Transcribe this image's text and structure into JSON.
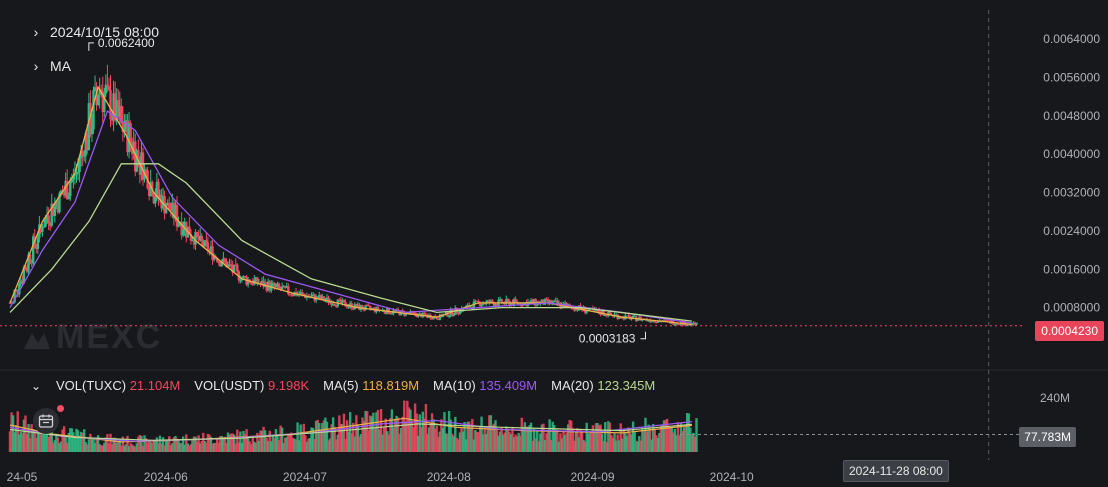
{
  "header": {
    "datetime": "2024/10/15 08:00",
    "indicator_label": "MA",
    "high_label": "0.0062400",
    "low_label": "0.0003183"
  },
  "watermark": "MEXC",
  "volume_legend": {
    "vol_tuxc_label": "VOL(TUXC)",
    "vol_tuxc_value": "21.104M",
    "vol_usdt_label": "VOL(USDT)",
    "vol_usdt_value": "9.198K",
    "ma5_label": "MA(5)",
    "ma5_value": "118.819M",
    "ma10_label": "MA(10)",
    "ma10_value": "135.409M",
    "ma20_label": "MA(20)",
    "ma20_value": "123.345M"
  },
  "price_tag": "0.0004230",
  "volume_tag": "77.783M",
  "crosshair_date": "2024-11-28 08:00",
  "colors": {
    "background": "#17181c",
    "up": "#2ebd85",
    "down": "#f6465d",
    "ma5": "#f0b04a",
    "ma10": "#9b59f5",
    "ma20": "#b9d98f",
    "price_line": "#f6465d"
  },
  "chart_data": {
    "type": "candlestick",
    "title": "",
    "price_axis": {
      "ylim": [
        0,
        0.0068
      ],
      "ticks": [
        0.0008,
        0.0016,
        0.0024,
        0.0032,
        0.004,
        0.0048,
        0.0056,
        0.0064
      ],
      "tick_labels": [
        "0.0008000",
        "0.0016000",
        "0.0024000",
        "0.0032000",
        "0.0040000",
        "0.0048000",
        "0.0056000",
        "0.0064000"
      ]
    },
    "volume_axis": {
      "ylim": [
        0,
        320
      ],
      "unit": "M",
      "ticks": [
        240
      ],
      "tick_labels": [
        "240M"
      ]
    },
    "x_axis": {
      "range": [
        "2024-05-01",
        "2024-11-30"
      ],
      "ticks": [
        "2024-05-01",
        "2024-06-01",
        "2024-07-01",
        "2024-08-01",
        "2024-09-01",
        "2024-10-01"
      ],
      "tick_labels": [
        "24-05",
        "2024-06",
        "2024-07",
        "2024-08",
        "2024-09",
        "2024-10"
      ]
    },
    "current_price": 0.000423,
    "current_volume_m": 77.783,
    "crosshair_x": "2024-11-28",
    "high": {
      "date": "2024-05-18",
      "value": 0.00624
    },
    "low": {
      "date": "2024-09-15",
      "value": 0.0003183
    },
    "series": [
      {
        "name": "MA(5)",
        "points": [
          [
            "2024-05-01",
            0.0009
          ],
          [
            "2024-05-08",
            0.0026
          ],
          [
            "2024-05-15",
            0.0036
          ],
          [
            "2024-05-20",
            0.0054
          ],
          [
            "2024-05-26",
            0.0044
          ],
          [
            "2024-06-01",
            0.0032
          ],
          [
            "2024-06-10",
            0.0022
          ],
          [
            "2024-06-20",
            0.0014
          ],
          [
            "2024-07-01",
            0.0011
          ],
          [
            "2024-07-15",
            0.0008
          ],
          [
            "2024-08-01",
            0.0006
          ],
          [
            "2024-08-10",
            0.0009
          ],
          [
            "2024-08-25",
            0.0009
          ],
          [
            "2024-09-10",
            0.0006
          ],
          [
            "2024-09-25",
            0.00045
          ]
        ]
      },
      {
        "name": "MA(10)",
        "points": [
          [
            "2024-05-01",
            0.0008
          ],
          [
            "2024-05-08",
            0.002
          ],
          [
            "2024-05-15",
            0.003
          ],
          [
            "2024-05-22",
            0.0049
          ],
          [
            "2024-05-28",
            0.0045
          ],
          [
            "2024-06-05",
            0.0031
          ],
          [
            "2024-06-15",
            0.0021
          ],
          [
            "2024-06-25",
            0.0015
          ],
          [
            "2024-07-10",
            0.0011
          ],
          [
            "2024-07-25",
            0.0007
          ],
          [
            "2024-08-10",
            0.0008
          ],
          [
            "2024-08-25",
            0.0009
          ],
          [
            "2024-09-10",
            0.0007
          ],
          [
            "2024-09-25",
            0.00048
          ]
        ]
      },
      {
        "name": "MA(20)",
        "points": [
          [
            "2024-05-01",
            0.0007
          ],
          [
            "2024-05-10",
            0.0016
          ],
          [
            "2024-05-18",
            0.0026
          ],
          [
            "2024-05-25",
            0.0038
          ],
          [
            "2024-06-02",
            0.0038
          ],
          [
            "2024-06-08",
            0.0034
          ],
          [
            "2024-06-20",
            0.0022
          ],
          [
            "2024-07-05",
            0.0014
          ],
          [
            "2024-07-20",
            0.001
          ],
          [
            "2024-08-01",
            0.0007
          ],
          [
            "2024-08-15",
            0.0008
          ],
          [
            "2024-09-01",
            0.0008
          ],
          [
            "2024-09-25",
            0.00052
          ]
        ]
      }
    ],
    "volume_series": [
      {
        "name": "MA(5)",
        "points": [
          [
            "2024-05-01",
            120
          ],
          [
            "2024-05-10",
            80
          ],
          [
            "2024-05-25",
            45
          ],
          [
            "2024-06-10",
            55
          ],
          [
            "2024-07-01",
            80
          ],
          [
            "2024-07-15",
            120
          ],
          [
            "2024-07-25",
            150
          ],
          [
            "2024-08-05",
            110
          ],
          [
            "2024-08-20",
            95
          ],
          [
            "2024-09-10",
            85
          ],
          [
            "2024-09-25",
            118
          ]
        ]
      },
      {
        "name": "MA(10)",
        "points": [
          [
            "2024-05-01",
            110
          ],
          [
            "2024-05-12",
            70
          ],
          [
            "2024-05-28",
            48
          ],
          [
            "2024-06-15",
            58
          ],
          [
            "2024-07-05",
            85
          ],
          [
            "2024-07-20",
            125
          ],
          [
            "2024-08-01",
            140
          ],
          [
            "2024-08-15",
            100
          ],
          [
            "2024-09-05",
            90
          ],
          [
            "2024-09-25",
            135
          ]
        ]
      },
      {
        "name": "MA(20)",
        "points": [
          [
            "2024-05-01",
            100
          ],
          [
            "2024-05-15",
            65
          ],
          [
            "2024-06-01",
            52
          ],
          [
            "2024-06-20",
            62
          ],
          [
            "2024-07-10",
            92
          ],
          [
            "2024-07-28",
            125
          ],
          [
            "2024-08-15",
            110
          ],
          [
            "2024-09-10",
            95
          ],
          [
            "2024-09-25",
            123
          ]
        ]
      }
    ]
  }
}
